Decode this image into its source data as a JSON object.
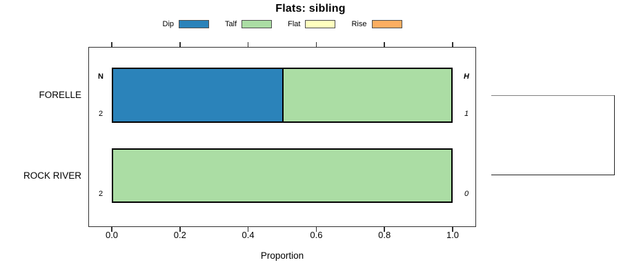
{
  "chart_data": {
    "type": "bar",
    "orientation": "horizontal",
    "stacked": true,
    "normalized": true,
    "title": "Flats: sibling",
    "xlabel": "Proportion",
    "xlim": [
      0.0,
      1.0
    ],
    "xticks": [
      "0.0",
      "0.2",
      "0.4",
      "0.6",
      "0.8",
      "1.0"
    ],
    "grid": false,
    "legend_position": "top",
    "categories": [
      "FORELLE",
      "ROCK RIVER"
    ],
    "series": [
      {
        "name": "Dip",
        "color": "#2B83BA",
        "values": [
          0.5,
          0.0
        ]
      },
      {
        "name": "Talf",
        "color": "#ABDDA4",
        "values": [
          0.5,
          1.0
        ]
      },
      {
        "name": "Flat",
        "color": "#FFFFBF",
        "values": [
          0.0,
          0.0
        ]
      },
      {
        "name": "Rise",
        "color": "#FDAE61",
        "values": [
          0.0,
          0.0
        ]
      }
    ],
    "annotations": {
      "left_header": "N",
      "right_header": "H",
      "rows": [
        {
          "left": "2",
          "right": "1"
        },
        {
          "left": "2",
          "right": "0"
        }
      ]
    }
  },
  "bracket": {
    "top_color": "#808080",
    "bottom_color": "#222222",
    "vertical_color": "#222222"
  },
  "colors": {
    "background": "#FFFFFF",
    "text": "#000000",
    "axis": "#303030",
    "bar_border": "#000000"
  }
}
